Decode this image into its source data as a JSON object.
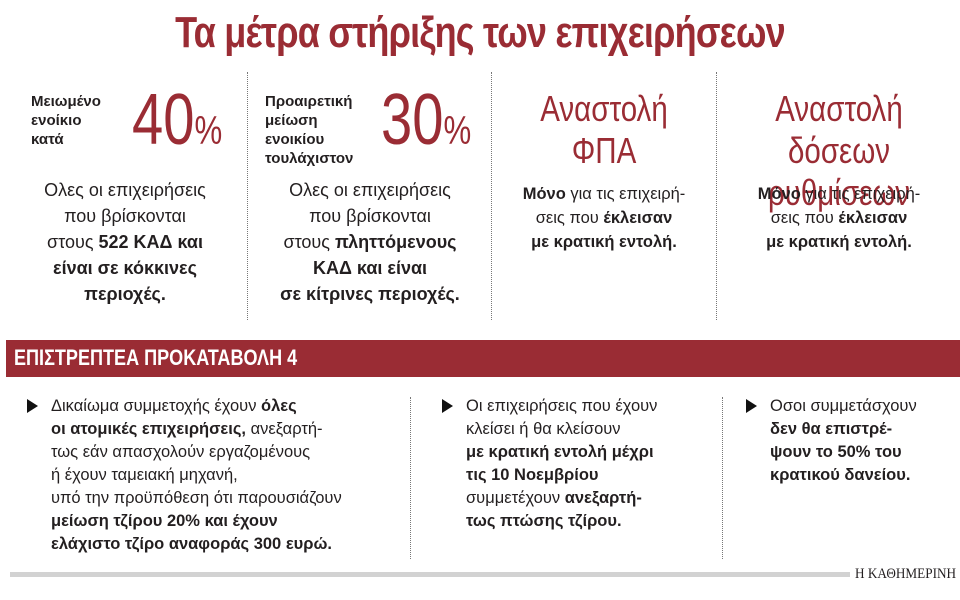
{
  "title": "Τα μέτρα στήριξης των επιχειρήσεων",
  "colors": {
    "accent": "#9a2c34",
    "text": "#231f20",
    "footer_bar": "#d2d2d2"
  },
  "measures": [
    {
      "lead": [
        "Μειωμένο",
        "ενοίκιο",
        "κατά"
      ],
      "big_number": "40",
      "unit": "%",
      "description": [
        {
          "parts": [
            {
              "text": "Ολες οι επιχειρήσεις",
              "bold": false
            }
          ]
        },
        {
          "parts": [
            {
              "text": "που βρίσκονται",
              "bold": false
            }
          ]
        },
        {
          "parts": [
            {
              "text": "στους ",
              "bold": false
            },
            {
              "text": "522 ΚΑΔ και",
              "bold": true
            }
          ]
        },
        {
          "parts": [
            {
              "text": "είναι σε κόκκινες",
              "bold": true
            }
          ]
        },
        {
          "parts": [
            {
              "text": "περιοχές.",
              "bold": true
            }
          ]
        }
      ]
    },
    {
      "lead": [
        "Προαιρετική",
        "μείωση",
        "ενοικίου",
        "τουλάχιστον"
      ],
      "big_number": "30",
      "unit": "%",
      "description": [
        {
          "parts": [
            {
              "text": "Ολες οι επιχειρήσεις",
              "bold": false
            }
          ]
        },
        {
          "parts": [
            {
              "text": "που βρίσκονται",
              "bold": false
            }
          ]
        },
        {
          "parts": [
            {
              "text": "στους ",
              "bold": false
            },
            {
              "text": "πληττόμενους",
              "bold": true
            }
          ]
        },
        {
          "parts": [
            {
              "text": "ΚΑΔ και είναι",
              "bold": true
            }
          ]
        },
        {
          "parts": [
            {
              "text": "σε κίτρινες περιοχές.",
              "bold": true
            }
          ]
        }
      ]
    },
    {
      "heading": [
        "Αναστολή",
        "ΦΠΑ"
      ],
      "description": [
        {
          "parts": [
            {
              "text": "Μόνο",
              "bold": true
            },
            {
              "text": " για τις επιχειρή-",
              "bold": false
            }
          ]
        },
        {
          "parts": [
            {
              "text": "σεις που ",
              "bold": false
            },
            {
              "text": "έκλεισαν",
              "bold": true
            }
          ]
        },
        {
          "parts": [
            {
              "text": "με κρατική εντολή.",
              "bold": true
            }
          ]
        }
      ]
    },
    {
      "heading": [
        "Αναστολή δόσεων",
        "ρυθμίσεων"
      ],
      "description": [
        {
          "parts": [
            {
              "text": "Μόνο",
              "bold": true
            },
            {
              "text": " για τις επιχειρή-",
              "bold": false
            }
          ]
        },
        {
          "parts": [
            {
              "text": "σεις που ",
              "bold": false
            },
            {
              "text": "έκλεισαν",
              "bold": true
            }
          ]
        },
        {
          "parts": [
            {
              "text": "με κρατική εντολή.",
              "bold": true
            }
          ]
        }
      ]
    }
  ],
  "banner": {
    "label": "ΕΠΙΣΤΡΕΠΤΕΑ ΠΡΟΚΑΤΑΒΟΛΗ 4"
  },
  "bullets": [
    {
      "lines": [
        {
          "parts": [
            {
              "text": "Δικαίωμα συμμετοχής έχουν ",
              "bold": false
            },
            {
              "text": "όλες",
              "bold": true
            }
          ]
        },
        {
          "parts": [
            {
              "text": "οι ατομικές επιχειρήσεις,",
              "bold": true
            },
            {
              "text": " ανεξαρτή-",
              "bold": false
            }
          ]
        },
        {
          "parts": [
            {
              "text": "τως εάν απασχολούν εργαζομένους",
              "bold": false
            }
          ]
        },
        {
          "parts": [
            {
              "text": "ή έχουν ταμειακή μηχανή,",
              "bold": false
            }
          ]
        },
        {
          "parts": [
            {
              "text": "υπό την προϋπόθεση ότι παρουσιάζουν",
              "bold": false
            }
          ]
        },
        {
          "parts": [
            {
              "text": "μείωση τζίρου 20% και έχουν",
              "bold": true
            }
          ]
        },
        {
          "parts": [
            {
              "text": "ελάχιστο τζίρο αναφοράς 300 ευρώ.",
              "bold": true
            }
          ]
        }
      ]
    },
    {
      "lines": [
        {
          "parts": [
            {
              "text": "Οι επιχειρήσεις που έχουν",
              "bold": false
            }
          ]
        },
        {
          "parts": [
            {
              "text": "κλείσει ή θα κλείσουν",
              "bold": false
            }
          ]
        },
        {
          "parts": [
            {
              "text": "με κρατική εντολή μέχρι",
              "bold": true
            }
          ]
        },
        {
          "parts": [
            {
              "text": "τις 10 Νοεμβρίου",
              "bold": true
            }
          ]
        },
        {
          "parts": [
            {
              "text": "συμμετέχουν ",
              "bold": false
            },
            {
              "text": "ανεξαρτή-",
              "bold": true
            }
          ]
        },
        {
          "parts": [
            {
              "text": "τως πτώσης τζίρου.",
              "bold": true
            }
          ]
        }
      ]
    },
    {
      "lines": [
        {
          "parts": [
            {
              "text": "Οσοι συμμετάσχουν",
              "bold": false
            }
          ]
        },
        {
          "parts": [
            {
              "text": "δεν θα επιστρέ-",
              "bold": true
            }
          ]
        },
        {
          "parts": [
            {
              "text": "ψουν το 50% του",
              "bold": true
            }
          ]
        },
        {
          "parts": [
            {
              "text": "κρατικού δανείου.",
              "bold": true
            }
          ]
        }
      ]
    }
  ],
  "footer": {
    "brand": "Η ΚΑΘΗΜΕΡΙΝΗ"
  }
}
